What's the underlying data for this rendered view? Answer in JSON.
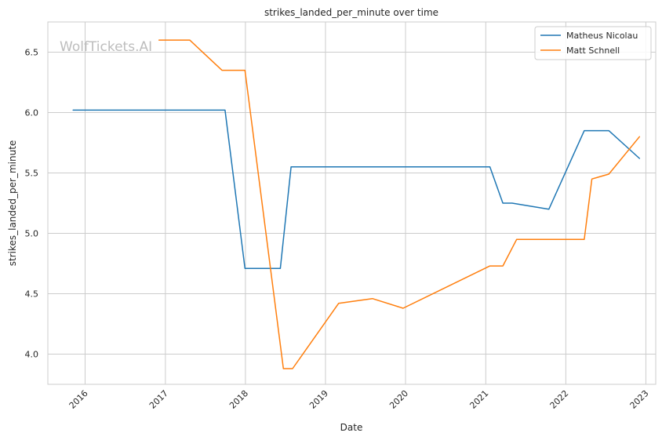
{
  "chart_data": {
    "type": "line",
    "title": "strikes_landed_per_minute over time",
    "xlabel": "Date",
    "ylabel": "strikes_landed_per_minute",
    "watermark": "WolfTickets.AI",
    "xlim": [
      "2015-07-15",
      "2023-02-15"
    ],
    "ylim": [
      3.75,
      6.75
    ],
    "x_ticks": [
      "2016",
      "2017",
      "2018",
      "2019",
      "2020",
      "2021",
      "2022",
      "2023"
    ],
    "y_ticks": [
      "4.0",
      "4.5",
      "5.0",
      "5.5",
      "6.0",
      "6.5"
    ],
    "grid": true,
    "legend_position": "top-right",
    "series": [
      {
        "name": "Matheus Nicolau",
        "color": "#1f77b4",
        "x": [
          "2015-11-07",
          "2017-09-30",
          "2017-12-30",
          "2018-06-09",
          "2018-07-28",
          "2021-01-20",
          "2021-03-20",
          "2021-05-01",
          "2021-10-16",
          "2022-03-26",
          "2022-07-16",
          "2022-12-03"
        ],
        "y": [
          6.02,
          6.02,
          4.71,
          4.71,
          5.55,
          5.55,
          5.25,
          5.25,
          5.2,
          5.85,
          5.85,
          5.62
        ]
      },
      {
        "name": "Matt Schnell",
        "color": "#ff7f0e",
        "x": [
          "2016-12-03",
          "2017-04-22",
          "2017-09-16",
          "2017-12-30",
          "2018-06-23",
          "2018-08-04",
          "2019-03-02",
          "2019-08-03",
          "2019-12-21",
          "2021-01-20",
          "2021-03-20",
          "2021-05-22",
          "2022-03-26",
          "2022-04-30",
          "2022-07-16",
          "2022-12-03"
        ],
        "y": [
          6.6,
          6.6,
          6.35,
          6.35,
          3.88,
          3.88,
          4.42,
          4.46,
          4.38,
          4.73,
          4.73,
          4.95,
          4.95,
          5.45,
          5.49,
          5.8
        ]
      }
    ]
  }
}
